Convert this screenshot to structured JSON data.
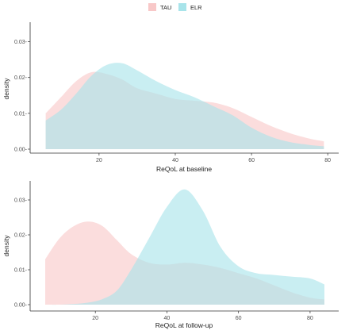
{
  "legend": [
    {
      "label": "TAU",
      "color": "#F8C8C8"
    },
    {
      "label": "ELR",
      "color": "#A8E4EA"
    }
  ],
  "chart_data": [
    {
      "type": "area",
      "xlabel": "ReQoL at baseline",
      "ylabel": "density",
      "xlim": [
        4,
        81
      ],
      "ylim": [
        0,
        0.035
      ],
      "xticks": [
        20,
        40,
        60,
        80
      ],
      "yticks": [
        0.0,
        0.01,
        0.02,
        0.03
      ],
      "xtick_labels": [
        "20",
        "40",
        "60",
        "80"
      ],
      "ytick_labels": [
        "0.00-",
        "0.01-",
        "0.02-",
        "0.03-"
      ],
      "grid": false,
      "series": [
        {
          "name": "TAU",
          "color": "#F8C8C8",
          "x": [
            6,
            10,
            14,
            18,
            22,
            26,
            30,
            35,
            40,
            45,
            50,
            55,
            60,
            65,
            70,
            75,
            79
          ],
          "y": [
            0.01,
            0.0145,
            0.019,
            0.0215,
            0.021,
            0.0195,
            0.017,
            0.0155,
            0.014,
            0.0135,
            0.013,
            0.0115,
            0.009,
            0.0065,
            0.0045,
            0.003,
            0.0022
          ]
        },
        {
          "name": "ELR",
          "color": "#A8E4EA",
          "x": [
            6,
            10,
            14,
            18,
            22,
            26,
            30,
            35,
            40,
            45,
            50,
            55,
            60,
            65,
            70,
            75,
            79
          ],
          "y": [
            0.008,
            0.011,
            0.0155,
            0.0205,
            0.0235,
            0.024,
            0.022,
            0.019,
            0.0165,
            0.0145,
            0.012,
            0.0095,
            0.006,
            0.0035,
            0.002,
            0.0012,
            0.0008
          ]
        }
      ]
    },
    {
      "type": "area",
      "xlabel": "ReQoL at follow-up",
      "ylabel": "density",
      "xlim": [
        4,
        86
      ],
      "ylim": [
        0,
        0.035
      ],
      "xticks": [
        20,
        40,
        60,
        80
      ],
      "yticks": [
        0.0,
        0.01,
        0.02,
        0.03
      ],
      "xtick_labels": [
        "20",
        "40",
        "60",
        "80"
      ],
      "ytick_labels": [
        "0.00-",
        "0.01-",
        "0.02-",
        "0.03-"
      ],
      "grid": false,
      "series": [
        {
          "name": "TAU",
          "color": "#F8C8C8",
          "x": [
            6,
            10,
            14,
            18,
            22,
            26,
            30,
            35,
            40,
            45,
            50,
            55,
            60,
            65,
            70,
            75,
            80,
            84
          ],
          "y": [
            0.013,
            0.019,
            0.0225,
            0.0238,
            0.0225,
            0.0185,
            0.0145,
            0.012,
            0.0115,
            0.012,
            0.0115,
            0.0105,
            0.009,
            0.0075,
            0.0055,
            0.0035,
            0.002,
            0.0015
          ]
        },
        {
          "name": "ELR",
          "color": "#A8E4EA",
          "x": [
            6,
            10,
            14,
            18,
            22,
            26,
            30,
            35,
            40,
            45,
            50,
            55,
            60,
            65,
            70,
            75,
            80,
            84
          ],
          "y": [
            0.0,
            0.0,
            0.0002,
            0.0006,
            0.0016,
            0.004,
            0.01,
            0.019,
            0.028,
            0.033,
            0.027,
            0.0165,
            0.011,
            0.009,
            0.0085,
            0.008,
            0.0075,
            0.0058
          ]
        }
      ]
    }
  ]
}
